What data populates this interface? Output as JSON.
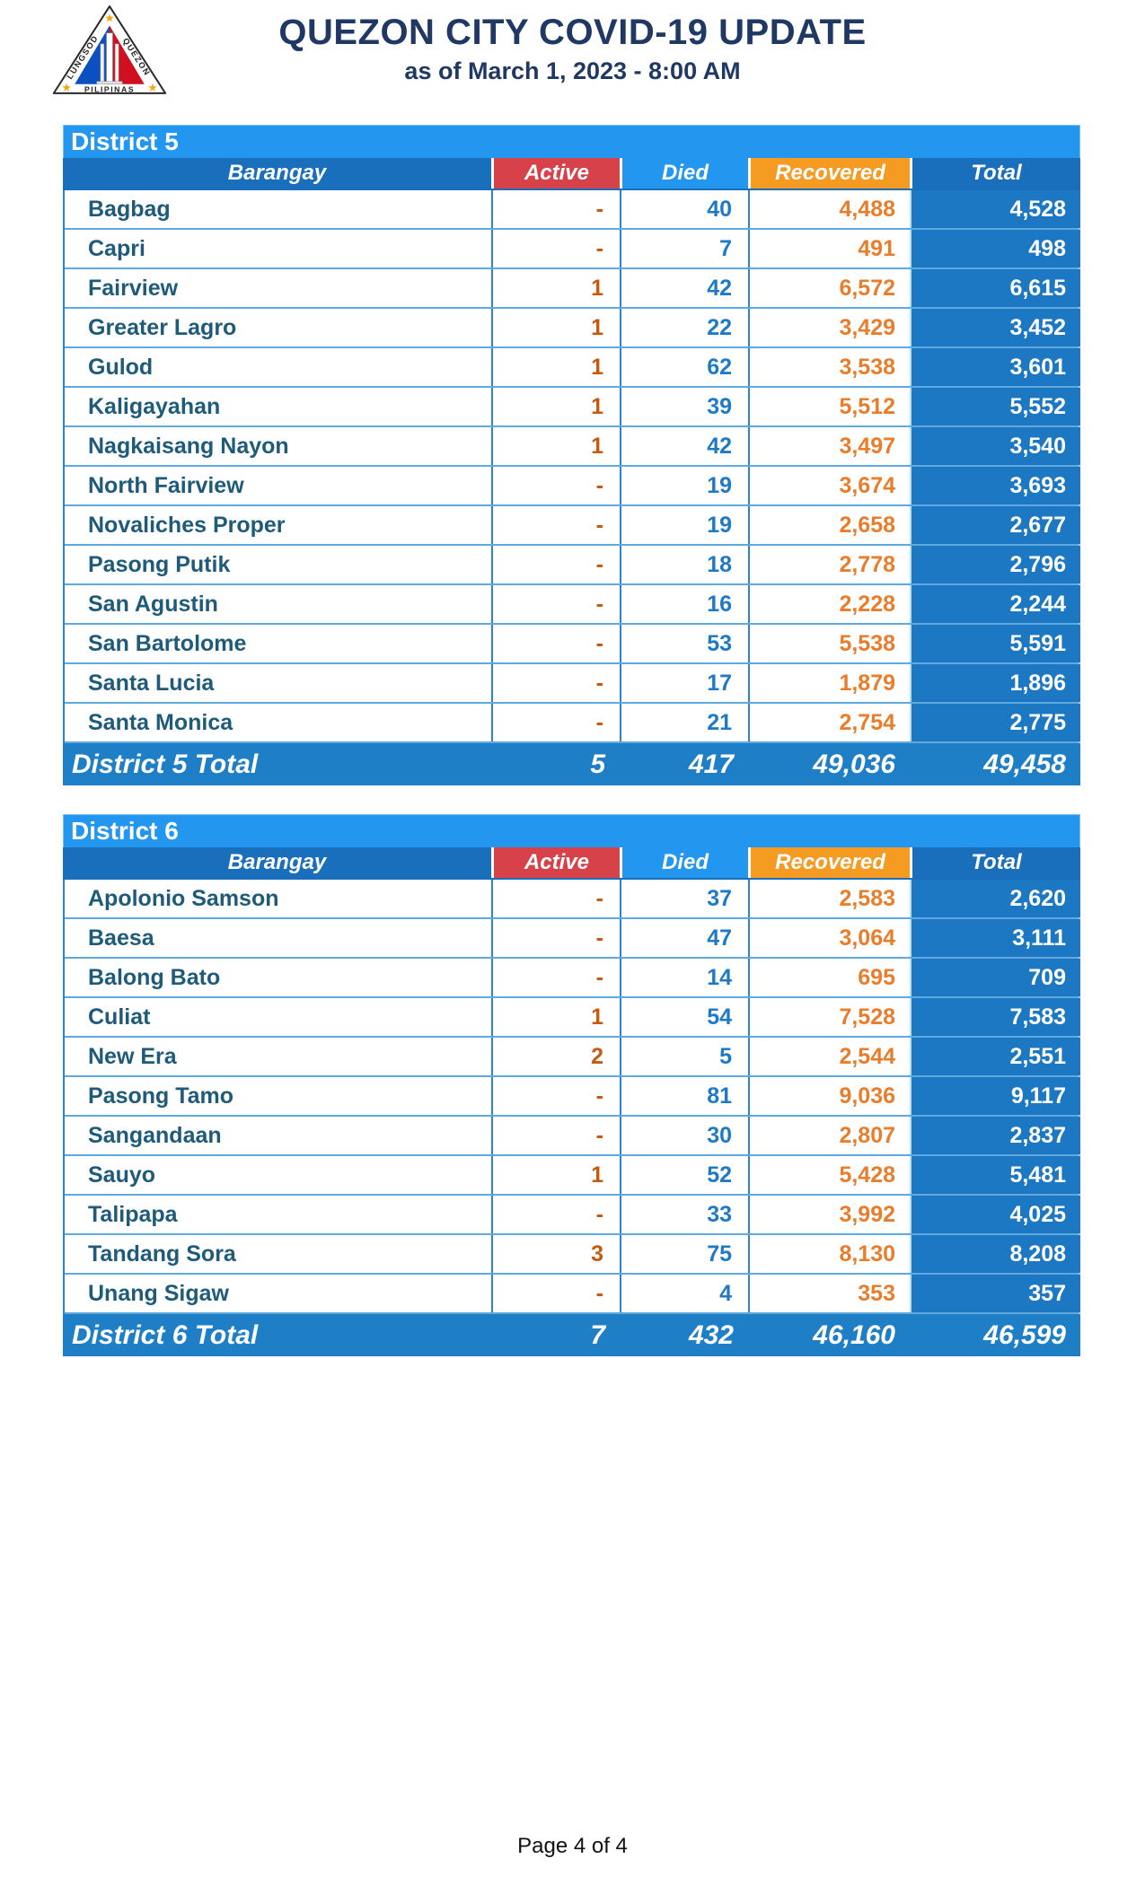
{
  "header": {
    "title": "QUEZON CITY COVID-19 UPDATE",
    "subtitle": "as of March 1, 2023 - 8:00 AM",
    "logo": {
      "icon": "quezon-city-seal",
      "text_left": "LUNGSOD",
      "text_right": "QUEZON",
      "text_bottom": "PILIPINAS"
    }
  },
  "columns": {
    "barangay": "Barangay",
    "active": "Active",
    "died": "Died",
    "recovered": "Recovered",
    "total": "Total"
  },
  "colors": {
    "title_navy": "#1F3864",
    "district_bar_blue": "#2396F0",
    "header_blue": "#1A6FBC",
    "active_header_red": "#D7424A",
    "died_header_blue": "#2396F0",
    "recovered_header_orange": "#F59B22",
    "total_column_blue": "#1C78C2",
    "total_row_blue": "#1F7FC6",
    "barangay_text": "#1E5B7A",
    "active_text": "#C55A11",
    "died_text": "#1F7AC6",
    "recovered_text": "#E87D2B"
  },
  "tables": [
    {
      "district": "District 5",
      "rows": [
        {
          "name": "Bagbag",
          "active": "-",
          "died": "40",
          "recovered": "4,488",
          "total": "4,528"
        },
        {
          "name": "Capri",
          "active": "-",
          "died": "7",
          "recovered": "491",
          "total": "498"
        },
        {
          "name": "Fairview",
          "active": "1",
          "died": "42",
          "recovered": "6,572",
          "total": "6,615"
        },
        {
          "name": "Greater Lagro",
          "active": "1",
          "died": "22",
          "recovered": "3,429",
          "total": "3,452"
        },
        {
          "name": "Gulod",
          "active": "1",
          "died": "62",
          "recovered": "3,538",
          "total": "3,601"
        },
        {
          "name": "Kaligayahan",
          "active": "1",
          "died": "39",
          "recovered": "5,512",
          "total": "5,552"
        },
        {
          "name": "Nagkaisang Nayon",
          "active": "1",
          "died": "42",
          "recovered": "3,497",
          "total": "3,540"
        },
        {
          "name": "North Fairview",
          "active": "-",
          "died": "19",
          "recovered": "3,674",
          "total": "3,693"
        },
        {
          "name": "Novaliches Proper",
          "active": "-",
          "died": "19",
          "recovered": "2,658",
          "total": "2,677"
        },
        {
          "name": "Pasong Putik",
          "active": "-",
          "died": "18",
          "recovered": "2,778",
          "total": "2,796"
        },
        {
          "name": "San Agustin",
          "active": "-",
          "died": "16",
          "recovered": "2,228",
          "total": "2,244"
        },
        {
          "name": "San Bartolome",
          "active": "-",
          "died": "53",
          "recovered": "5,538",
          "total": "5,591"
        },
        {
          "name": "Santa Lucia",
          "active": "-",
          "died": "17",
          "recovered": "1,879",
          "total": "1,896"
        },
        {
          "name": "Santa Monica",
          "active": "-",
          "died": "21",
          "recovered": "2,754",
          "total": "2,775"
        }
      ],
      "total": {
        "label": "District 5 Total",
        "active": "5",
        "died": "417",
        "recovered": "49,036",
        "total": "49,458"
      }
    },
    {
      "district": "District 6",
      "rows": [
        {
          "name": "Apolonio Samson",
          "active": "-",
          "died": "37",
          "recovered": "2,583",
          "total": "2,620"
        },
        {
          "name": "Baesa",
          "active": "-",
          "died": "47",
          "recovered": "3,064",
          "total": "3,111"
        },
        {
          "name": "Balong Bato",
          "active": "-",
          "died": "14",
          "recovered": "695",
          "total": "709"
        },
        {
          "name": "Culiat",
          "active": "1",
          "died": "54",
          "recovered": "7,528",
          "total": "7,583"
        },
        {
          "name": "New Era",
          "active": "2",
          "died": "5",
          "recovered": "2,544",
          "total": "2,551"
        },
        {
          "name": "Pasong Tamo",
          "active": "-",
          "died": "81",
          "recovered": "9,036",
          "total": "9,117"
        },
        {
          "name": "Sangandaan",
          "active": "-",
          "died": "30",
          "recovered": "2,807",
          "total": "2,837"
        },
        {
          "name": "Sauyo",
          "active": "1",
          "died": "52",
          "recovered": "5,428",
          "total": "5,481"
        },
        {
          "name": "Talipapa",
          "active": "-",
          "died": "33",
          "recovered": "3,992",
          "total": "4,025"
        },
        {
          "name": "Tandang Sora",
          "active": "3",
          "died": "75",
          "recovered": "8,130",
          "total": "8,208"
        },
        {
          "name": "Unang Sigaw",
          "active": "-",
          "died": "4",
          "recovered": "353",
          "total": "357"
        }
      ],
      "total": {
        "label": "District 6 Total",
        "active": "7",
        "died": "432",
        "recovered": "46,160",
        "total": "46,599"
      }
    }
  ],
  "footer": {
    "page_label": "Page 4 of 4"
  }
}
